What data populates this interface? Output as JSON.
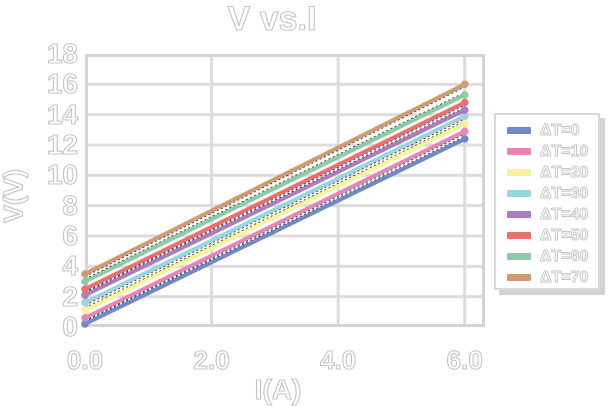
{
  "chart_data": {
    "type": "line",
    "title": "V vs.I",
    "xlabel": "I(A)",
    "ylabel": "V(V)",
    "xlim": [
      0,
      6.32
    ],
    "ylim": [
      0,
      18
    ],
    "grid": true,
    "legend_position": "right outside",
    "xticks": {
      "values": [
        0,
        2,
        4,
        6
      ],
      "labels": [
        "0.0",
        "2.0",
        "4.0",
        "6.0"
      ]
    },
    "yticks": {
      "values": [
        0,
        2,
        4,
        6,
        8,
        10,
        12,
        14,
        16,
        18
      ],
      "labels": [
        "0",
        "2",
        "4",
        "6",
        "8",
        "10",
        "12",
        "14",
        "16",
        "18"
      ]
    },
    "x": [
      0,
      6
    ],
    "series": [
      {
        "name": "ΔT=0",
        "color": "#7289c8",
        "values": [
          0.2,
          12.4
        ]
      },
      {
        "name": "ΔT=10",
        "color": "#e587b6",
        "values": [
          0.6,
          12.9
        ]
      },
      {
        "name": "ΔT=20",
        "color": "#f8f29a",
        "values": [
          1.1,
          13.4
        ]
      },
      {
        "name": "ΔT=30",
        "color": "#9ad5de",
        "values": [
          1.6,
          13.9
        ]
      },
      {
        "name": "ΔT=40",
        "color": "#a97dc0",
        "values": [
          2.1,
          14.3
        ]
      },
      {
        "name": "ΔT=50",
        "color": "#eb6f6f",
        "values": [
          2.5,
          14.8
        ]
      },
      {
        "name": "ΔT=60",
        "color": "#8fcaa6",
        "values": [
          3.0,
          15.3
        ]
      },
      {
        "name": "ΔT=70",
        "color": "#d19a72",
        "values": [
          3.5,
          16.0
        ]
      }
    ],
    "style": {
      "grid_color": "#dcdcdc",
      "frame_color": "#d4d4d4",
      "text_outline_color": "#c4c4c4",
      "background": "#ffffff",
      "underlying_data_line": {
        "color": "#333333",
        "style": "dotted"
      }
    }
  }
}
